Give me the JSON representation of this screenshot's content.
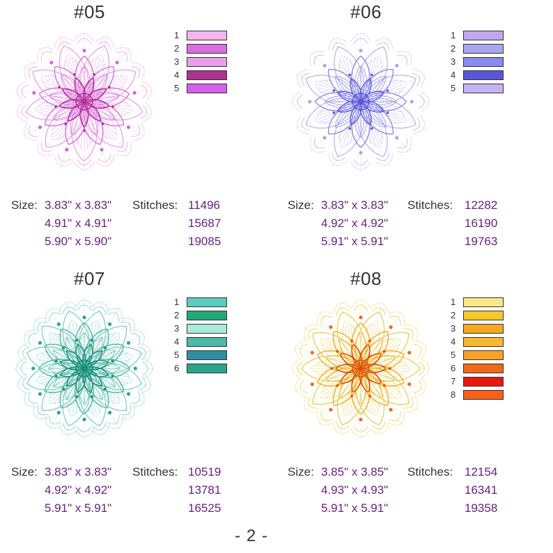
{
  "designs": [
    {
      "id": "05",
      "title": "#05",
      "colors": [
        {
          "n": "1",
          "hex": "#f6b5f0"
        },
        {
          "n": "2",
          "hex": "#d86ee0"
        },
        {
          "n": "3",
          "hex": "#e9a0e8"
        },
        {
          "n": "4",
          "hex": "#b0318e"
        },
        {
          "n": "5",
          "hex": "#d560ea"
        }
      ],
      "size_label": "Size:",
      "stitches_label": "Stitches:",
      "rows": [
        {
          "size": "3.83\" x 3.83\"",
          "stitches": "11496"
        },
        {
          "size": "4.91\" x 4.91\"",
          "stitches": "15687"
        },
        {
          "size": "5.90\" x 5.90\"",
          "stitches": "19085"
        }
      ],
      "palette": {
        "outer": "#e9a0e8",
        "mid": "#d86ee0",
        "inner": "#b0318e",
        "accent": "#d560ea"
      }
    },
    {
      "id": "06",
      "title": "#06",
      "colors": [
        {
          "n": "1",
          "hex": "#c0a8f0"
        },
        {
          "n": "2",
          "hex": "#a7a6ee"
        },
        {
          "n": "3",
          "hex": "#8a8af0"
        },
        {
          "n": "4",
          "hex": "#5c55d8"
        },
        {
          "n": "5",
          "hex": "#c6b3f2"
        }
      ],
      "size_label": "Size:",
      "stitches_label": "Stitches:",
      "rows": [
        {
          "size": "3.83\" x 3.83\"",
          "stitches": "12282"
        },
        {
          "size": "4.92\" x 4.92\"",
          "stitches": "16190"
        },
        {
          "size": "5.91\" x 5.91\"",
          "stitches": "19763"
        }
      ],
      "palette": {
        "outer": "#b8b4f0",
        "mid": "#8a8af0",
        "inner": "#5c55d8",
        "accent": "#a7a6ee"
      }
    },
    {
      "id": "07",
      "title": "#07",
      "colors": [
        {
          "n": "1",
          "hex": "#5ecbc0"
        },
        {
          "n": "2",
          "hex": "#24a878"
        },
        {
          "n": "3",
          "hex": "#a8ecd8"
        },
        {
          "n": "4",
          "hex": "#4fb8a8"
        },
        {
          "n": "5",
          "hex": "#2f8ea0"
        },
        {
          "n": "6",
          "hex": "#2aa58c"
        }
      ],
      "size_label": "Size:",
      "stitches_label": "Stitches:",
      "rows": [
        {
          "size": "3.83\" x 3.83\"",
          "stitches": "10519"
        },
        {
          "size": "4.92\" x 4.92\"",
          "stitches": "13781"
        },
        {
          "size": "5.91\" x 5.91\"",
          "stitches": "16525"
        }
      ],
      "palette": {
        "outer": "#7fcfc0",
        "mid": "#4fb8a8",
        "inner": "#1f8a78",
        "accent": "#2aa58c"
      }
    },
    {
      "id": "08",
      "title": "#08",
      "colors": [
        {
          "n": "1",
          "hex": "#f8e888"
        },
        {
          "n": "2",
          "hex": "#f8c828"
        },
        {
          "n": "3",
          "hex": "#f8a820"
        },
        {
          "n": "4",
          "hex": "#f8b830"
        },
        {
          "n": "5",
          "hex": "#f8a028"
        },
        {
          "n": "6",
          "hex": "#f06818"
        },
        {
          "n": "7",
          "hex": "#e81810"
        },
        {
          "n": "8",
          "hex": "#f86018"
        }
      ],
      "size_label": "Size:",
      "stitches_label": "Stitches:",
      "rows": [
        {
          "size": "3.85\" x 3.85\"",
          "stitches": "12154"
        },
        {
          "size": "4.93\" x 4.93\"",
          "stitches": "16341"
        },
        {
          "size": "5.91\" x 5.91\"",
          "stitches": "19358"
        }
      ],
      "palette": {
        "outer": "#e8d050",
        "mid": "#f8a820",
        "inner": "#d84818",
        "accent": "#f06818"
      }
    }
  ],
  "page_number": "- 2 -"
}
